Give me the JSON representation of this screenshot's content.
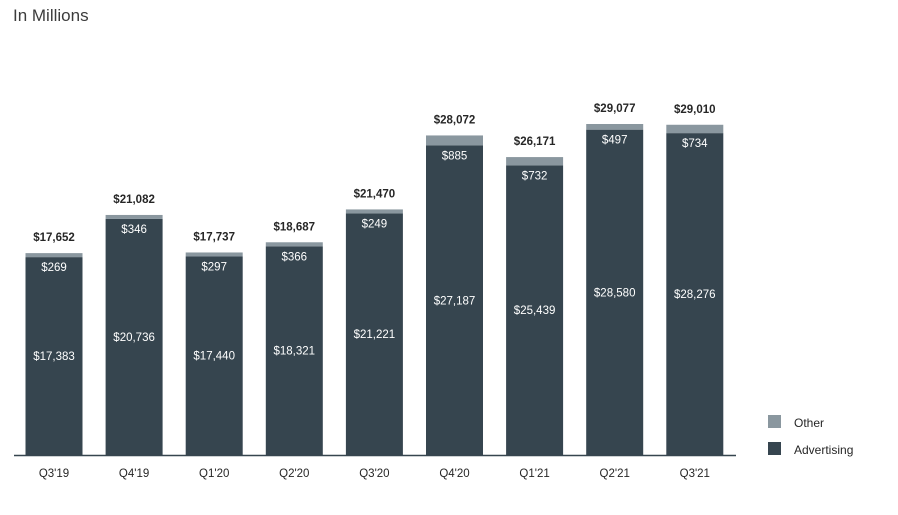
{
  "chart_data": {
    "type": "bar",
    "stacked": true,
    "title": "In Millions",
    "categories": [
      "Q3'19",
      "Q4'19",
      "Q1'20",
      "Q2'20",
      "Q3'20",
      "Q4'20",
      "Q1'21",
      "Q2'21",
      "Q3'21"
    ],
    "series": [
      {
        "name": "Advertising",
        "color": "#36454f",
        "values": [
          17383,
          20736,
          17440,
          18321,
          21221,
          27187,
          25439,
          28580,
          28276
        ],
        "labels": [
          "$17,383",
          "$20,736",
          "$17,440",
          "$18,321",
          "$21,221",
          "$27,187",
          "$25,439",
          "$28,580",
          "$28,276"
        ]
      },
      {
        "name": "Other",
        "color": "#8a979f",
        "values": [
          269,
          346,
          297,
          366,
          249,
          885,
          732,
          497,
          734
        ],
        "labels": [
          "$269",
          "$346",
          "$297",
          "$366",
          "$249",
          "$885",
          "$732",
          "$497",
          "$734"
        ]
      }
    ],
    "totals": [
      17652,
      21082,
      17737,
      18687,
      21470,
      28072,
      26171,
      29077,
      29010
    ],
    "total_labels": [
      "$17,652",
      "$21,082",
      "$17,737",
      "$18,687",
      "$21,470",
      "$28,072",
      "$26,171",
      "$29,077",
      "$29,010"
    ],
    "legend": {
      "position": "bottom-right",
      "entries": [
        "Other",
        "Advertising"
      ]
    },
    "axis_color": "#36454f",
    "grid": false
  }
}
